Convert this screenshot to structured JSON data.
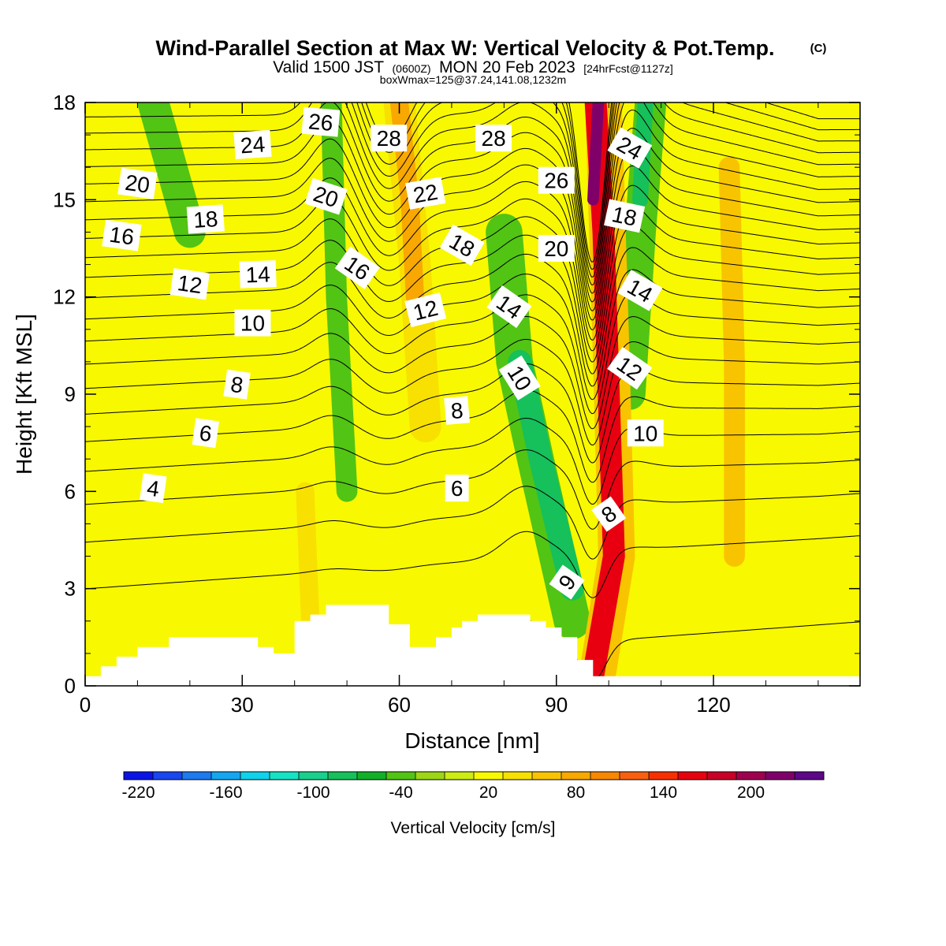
{
  "header": {
    "title_main": "Wind-Parallel Section at Max W: Vertical Velocity & Pot.Temp.",
    "title_copyright": "(C)",
    "subtitle_a": "Valid 1500 JST",
    "subtitle_b": "(0600Z)",
    "subtitle_c": "MON 20 Feb 2023",
    "subtitle_d": "[24hrFcst@1127z]",
    "subtitle_line2": "boxWmax=125@37.24,141.08,1232m"
  },
  "chart_data": {
    "type": "heatmap",
    "xlabel": "Distance [nm]",
    "ylabel": "Height [Kft MSL]",
    "xlim": [
      0,
      148
    ],
    "ylim": [
      0,
      18
    ],
    "x_ticks": [
      0,
      30,
      60,
      90,
      120
    ],
    "y_ticks": [
      0,
      3,
      6,
      9,
      12,
      15,
      18
    ],
    "colorbar": {
      "label": "Vertical Velocity [cm/s]",
      "min": -230,
      "step": 20,
      "tick_values": [
        -220,
        -160,
        -100,
        -40,
        20,
        80,
        140,
        200
      ],
      "colors": [
        "#0b14e6",
        "#1a46f0",
        "#1d7af0",
        "#15a6f0",
        "#10d2ea",
        "#16e2c4",
        "#18d08c",
        "#16c05a",
        "#12b028",
        "#52c414",
        "#9cd614",
        "#ccec14",
        "#f8f800",
        "#f8e000",
        "#f8c400",
        "#f8a800",
        "#f88800",
        "#f86010",
        "#f83000",
        "#e80010",
        "#c80028",
        "#a00050",
        "#80006a",
        "#5c0888"
      ]
    },
    "velocity_features": [
      {
        "kind": "updraft",
        "value": 150,
        "x": [
          97,
          101,
          100,
          99,
          97.5
        ],
        "z": [
          0.3,
          4,
          9,
          14,
          18
        ],
        "width": 4.2
      },
      {
        "kind": "updraft",
        "value": 210,
        "x": [
          97,
          98
        ],
        "z": [
          15,
          18
        ],
        "width": 2.2
      },
      {
        "kind": "updraft",
        "value": 50,
        "x": [
          98,
          101.5,
          100.5,
          99
        ],
        "z": [
          0.5,
          4,
          10,
          18
        ],
        "width": 7
      },
      {
        "kind": "downdraft",
        "value": -80,
        "x": [
          93,
          87,
          83
        ],
        "z": [
          3,
          7,
          10
        ],
        "width": 4.5
      },
      {
        "kind": "downdraft",
        "value": -45,
        "x": [
          93,
          86,
          82,
          80
        ],
        "z": [
          2,
          7,
          10,
          14
        ],
        "width": 7
      },
      {
        "kind": "downdraft",
        "value": -90,
        "x": [
          106,
          107
        ],
        "z": [
          15,
          18
        ],
        "width": 3
      },
      {
        "kind": "downdraft",
        "value": -45,
        "x": [
          104,
          106,
          108
        ],
        "z": [
          9,
          14,
          18
        ],
        "width": 6
      },
      {
        "kind": "updraft",
        "value": 70,
        "x": [
          63,
          62,
          60
        ],
        "z": [
          12,
          15,
          18
        ],
        "width": 3.5
      },
      {
        "kind": "updraft",
        "value": 40,
        "x": [
          65,
          63,
          60
        ],
        "z": [
          8,
          13,
          18
        ],
        "width": 6
      },
      {
        "kind": "downdraft",
        "value": -50,
        "x": [
          50,
          48,
          47
        ],
        "z": [
          6,
          12,
          18
        ],
        "width": 4
      },
      {
        "kind": "downdraft",
        "value": -35,
        "x": [
          20,
          13
        ],
        "z": [
          14,
          18
        ],
        "width": 6
      },
      {
        "kind": "updraft",
        "value": 50,
        "x": [
          124,
          124,
          123
        ],
        "z": [
          4,
          10,
          16
        ],
        "width": 4
      },
      {
        "kind": "updraft",
        "value": 45,
        "x": [
          43,
          42
        ],
        "z": [
          2,
          6
        ],
        "width": 3.5
      }
    ],
    "contour_levels": [
      4,
      5,
      6,
      7,
      8,
      9,
      10,
      11,
      12,
      13,
      14,
      15,
      16,
      17,
      18,
      19,
      20,
      21,
      22,
      23,
      24,
      25,
      26,
      27,
      28
    ],
    "contour_labels": [
      {
        "text": "4",
        "x": 13,
        "z": 6.1,
        "angle": 8
      },
      {
        "text": "6",
        "x": 23,
        "z": 7.8,
        "angle": 8
      },
      {
        "text": "8",
        "x": 29,
        "z": 9.3,
        "angle": 8
      },
      {
        "text": "10",
        "x": 32,
        "z": 11.2,
        "angle": 0
      },
      {
        "text": "12",
        "x": 20,
        "z": 12.4,
        "angle": 8
      },
      {
        "text": "14",
        "x": 33,
        "z": 12.7,
        "angle": -2
      },
      {
        "text": "16",
        "x": 7,
        "z": 13.9,
        "angle": 8
      },
      {
        "text": "18",
        "x": 23,
        "z": 14.4,
        "angle": -4
      },
      {
        "text": "20",
        "x": 10,
        "z": 15.5,
        "angle": 8
      },
      {
        "text": "24",
        "x": 32,
        "z": 16.7,
        "angle": -4
      },
      {
        "text": "26",
        "x": 45,
        "z": 17.4,
        "angle": 5
      },
      {
        "text": "20",
        "x": 46,
        "z": 15.1,
        "angle": 18
      },
      {
        "text": "16",
        "x": 52,
        "z": 12.9,
        "angle": 35
      },
      {
        "text": "28",
        "x": 58,
        "z": 16.9,
        "angle": 0
      },
      {
        "text": "22",
        "x": 65,
        "z": 15.2,
        "angle": -10
      },
      {
        "text": "18",
        "x": 72,
        "z": 13.6,
        "angle": 30
      },
      {
        "text": "12",
        "x": 65,
        "z": 11.6,
        "angle": -14
      },
      {
        "text": "8",
        "x": 71,
        "z": 8.5,
        "angle": -5
      },
      {
        "text": "6",
        "x": 71,
        "z": 6.1,
        "angle": 0
      },
      {
        "text": "28",
        "x": 78,
        "z": 16.9,
        "angle": 0
      },
      {
        "text": "14",
        "x": 81,
        "z": 11.7,
        "angle": 35
      },
      {
        "text": "10",
        "x": 83,
        "z": 9.5,
        "angle": 58
      },
      {
        "text": "26",
        "x": 90,
        "z": 15.6,
        "angle": 0
      },
      {
        "text": "20",
        "x": 90,
        "z": 13.5,
        "angle": 0
      },
      {
        "text": "24",
        "x": 104,
        "z": 16.6,
        "angle": 30
      },
      {
        "text": "18",
        "x": 103,
        "z": 14.5,
        "angle": 12
      },
      {
        "text": "14",
        "x": 106,
        "z": 12.2,
        "angle": 30
      },
      {
        "text": "12",
        "x": 104,
        "z": 9.8,
        "angle": 35
      },
      {
        "text": "10",
        "x": 107,
        "z": 7.8,
        "angle": 0
      },
      {
        "text": "8",
        "x": 100,
        "z": 5.3,
        "angle": -35
      },
      {
        "text": "9",
        "x": 92,
        "z": 3.2,
        "angle": -55
      }
    ],
    "terrain": {
      "x": [
        0,
        3,
        3,
        6,
        6,
        10,
        10,
        16,
        16,
        33,
        33,
        36,
        36,
        40,
        40,
        43,
        43,
        46,
        46,
        52,
        52,
        58,
        58,
        62,
        62,
        67,
        67,
        70,
        70,
        72,
        72,
        75,
        75,
        85,
        85,
        88,
        88,
        91,
        91,
        94,
        94,
        97,
        97,
        148
      ],
      "z": [
        0.3,
        0.3,
        0.6,
        0.6,
        0.9,
        0.9,
        1.2,
        1.2,
        1.5,
        1.5,
        1.2,
        1.2,
        1.0,
        1.0,
        2.0,
        2.0,
        2.2,
        2.2,
        2.5,
        2.5,
        2.5,
        2.5,
        1.9,
        1.9,
        1.2,
        1.2,
        1.5,
        1.5,
        1.8,
        1.8,
        2.0,
        2.0,
        2.2,
        2.2,
        2.0,
        2.0,
        1.8,
        1.8,
        1.5,
        1.5,
        0.8,
        0.8,
        0.3,
        0.3
      ]
    }
  }
}
